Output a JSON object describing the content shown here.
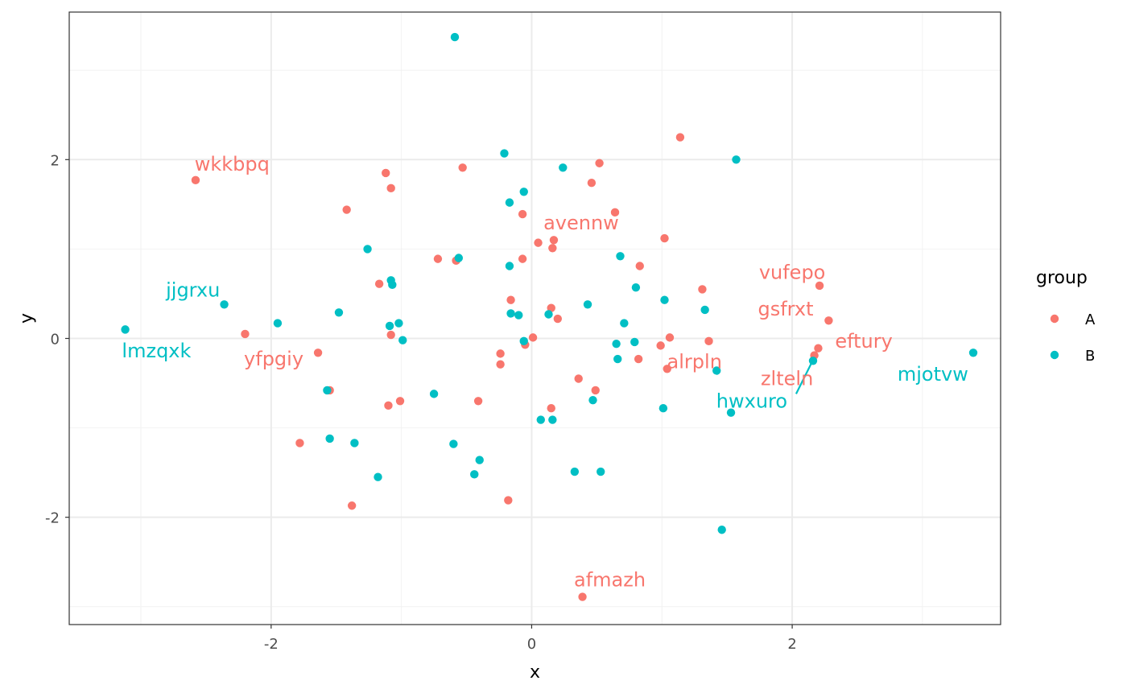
{
  "chart_data": {
    "type": "scatter",
    "xlabel": "x",
    "ylabel": "y",
    "xlim": [
      -3.55,
      3.6
    ],
    "ylim": [
      -3.2,
      3.65
    ],
    "x_ticks": [
      -2,
      0,
      2
    ],
    "x_tick_labels": [
      "-2",
      "0",
      "2"
    ],
    "y_ticks": [
      -2,
      0,
      2
    ],
    "y_tick_labels": [
      "-2",
      "0",
      "2"
    ],
    "grid": true,
    "legend": {
      "title": "group",
      "position": "right",
      "entries": [
        {
          "label": "A",
          "color": "#F8766D"
        },
        {
          "label": "B",
          "color": "#00BFC4"
        }
      ]
    },
    "series": [
      {
        "name": "A",
        "color": "#F8766D",
        "points": [
          [
            -2.58,
            1.77
          ],
          [
            -2.2,
            0.05
          ],
          [
            -1.64,
            -0.16
          ],
          [
            -1.78,
            -1.17
          ],
          [
            -1.55,
            -0.58
          ],
          [
            -1.42,
            1.44
          ],
          [
            -1.38,
            -1.87
          ],
          [
            -1.17,
            0.61
          ],
          [
            -1.12,
            1.85
          ],
          [
            -1.08,
            1.68
          ],
          [
            -1.08,
            0.04
          ],
          [
            -1.1,
            -0.75
          ],
          [
            -1.01,
            -0.7
          ],
          [
            -0.72,
            0.89
          ],
          [
            -0.58,
            0.87
          ],
          [
            -0.53,
            1.91
          ],
          [
            -0.41,
            -0.7
          ],
          [
            -0.24,
            -0.17
          ],
          [
            -0.24,
            -0.29
          ],
          [
            -0.18,
            -1.81
          ],
          [
            -0.16,
            0.43
          ],
          [
            -0.07,
            1.39
          ],
          [
            -0.07,
            0.89
          ],
          [
            -0.05,
            -0.07
          ],
          [
            0.01,
            0.01
          ],
          [
            0.05,
            1.07
          ],
          [
            0.15,
            0.34
          ],
          [
            0.17,
            1.1
          ],
          [
            0.16,
            1.01
          ],
          [
            0.2,
            0.22
          ],
          [
            0.15,
            -0.78
          ],
          [
            0.36,
            -0.45
          ],
          [
            0.39,
            -2.89
          ],
          [
            0.46,
            1.74
          ],
          [
            0.49,
            -0.58
          ],
          [
            0.52,
            1.96
          ],
          [
            0.64,
            1.41
          ],
          [
            0.83,
            0.81
          ],
          [
            0.82,
            -0.23
          ],
          [
            1.02,
            1.12
          ],
          [
            1.04,
            -0.34
          ],
          [
            1.06,
            0.01
          ],
          [
            0.99,
            -0.08
          ],
          [
            1.14,
            2.25
          ],
          [
            1.31,
            0.55
          ],
          [
            1.36,
            -0.03
          ],
          [
            2.21,
            0.59
          ],
          [
            2.28,
            0.2
          ],
          [
            2.2,
            -0.11
          ],
          [
            2.17,
            -0.19
          ]
        ]
      },
      {
        "name": "B",
        "color": "#00BFC4",
        "points": [
          [
            -3.12,
            0.1
          ],
          [
            -2.36,
            0.38
          ],
          [
            -1.95,
            0.17
          ],
          [
            -1.48,
            0.29
          ],
          [
            -1.57,
            -0.58
          ],
          [
            -1.55,
            -1.12
          ],
          [
            -1.36,
            -1.17
          ],
          [
            -1.26,
            1.0
          ],
          [
            -1.18,
            -1.55
          ],
          [
            -1.08,
            0.65
          ],
          [
            -1.07,
            0.6
          ],
          [
            -1.09,
            0.14
          ],
          [
            -1.02,
            0.17
          ],
          [
            -0.99,
            -0.02
          ],
          [
            -0.75,
            -0.62
          ],
          [
            -0.6,
            -1.18
          ],
          [
            -0.59,
            3.37
          ],
          [
            -0.56,
            0.9
          ],
          [
            -0.44,
            -1.52
          ],
          [
            -0.4,
            -1.36
          ],
          [
            -0.21,
            2.07
          ],
          [
            -0.17,
            1.52
          ],
          [
            -0.17,
            0.81
          ],
          [
            -0.16,
            0.28
          ],
          [
            -0.1,
            0.26
          ],
          [
            -0.06,
            1.64
          ],
          [
            -0.06,
            -0.03
          ],
          [
            0.07,
            -0.91
          ],
          [
            0.13,
            0.27
          ],
          [
            0.16,
            -0.91
          ],
          [
            0.24,
            1.91
          ],
          [
            0.33,
            -1.49
          ],
          [
            0.43,
            0.38
          ],
          [
            0.47,
            -0.69
          ],
          [
            0.53,
            -1.49
          ],
          [
            0.65,
            -0.06
          ],
          [
            0.66,
            -0.23
          ],
          [
            0.68,
            0.92
          ],
          [
            0.71,
            0.17
          ],
          [
            0.79,
            -0.04
          ],
          [
            0.8,
            0.57
          ],
          [
            1.01,
            -0.78
          ],
          [
            1.02,
            0.43
          ],
          [
            1.33,
            0.32
          ],
          [
            1.42,
            -0.36
          ],
          [
            1.46,
            -2.14
          ],
          [
            1.53,
            -0.83
          ],
          [
            1.57,
            2.0
          ],
          [
            2.16,
            -0.25
          ],
          [
            3.39,
            -0.16
          ]
        ]
      }
    ],
    "labels": [
      {
        "text": "wkkbpq",
        "group": "A",
        "x": -2.3,
        "y": 1.95,
        "anchor": "middle"
      },
      {
        "text": "avennw",
        "group": "A",
        "x": 0.38,
        "y": 1.29,
        "anchor": "middle"
      },
      {
        "text": "vufepo",
        "group": "A",
        "x": 2.0,
        "y": 0.74,
        "anchor": "middle"
      },
      {
        "text": "gsfrxt",
        "group": "A",
        "x": 1.95,
        "y": 0.33,
        "anchor": "middle"
      },
      {
        "text": "eftury",
        "group": "A",
        "x": 2.55,
        "y": -0.03,
        "anchor": "middle"
      },
      {
        "text": "yfpgiy",
        "group": "A",
        "x": -1.98,
        "y": -0.23,
        "anchor": "middle"
      },
      {
        "text": "alrpln",
        "group": "A",
        "x": 1.25,
        "y": -0.26,
        "anchor": "middle"
      },
      {
        "text": "zlteln",
        "group": "A",
        "x": 1.96,
        "y": -0.45,
        "anchor": "middle"
      },
      {
        "text": "afmazh",
        "group": "A",
        "x": 0.6,
        "y": -2.7,
        "anchor": "middle"
      },
      {
        "text": "jjgrxu",
        "group": "B",
        "x": -2.6,
        "y": 0.54,
        "anchor": "middle"
      },
      {
        "text": "lmzqxk",
        "group": "B",
        "x": -2.88,
        "y": -0.14,
        "anchor": "middle"
      },
      {
        "text": "mjotvw",
        "group": "B",
        "x": 3.08,
        "y": -0.4,
        "anchor": "middle"
      },
      {
        "text": "hwxuro",
        "group": "B",
        "x": 1.69,
        "y": -0.7,
        "anchor": "middle"
      }
    ],
    "segments": [
      {
        "group": "B",
        "from": [
          2.03,
          -0.62
        ],
        "to": [
          2.15,
          -0.27
        ]
      }
    ]
  }
}
